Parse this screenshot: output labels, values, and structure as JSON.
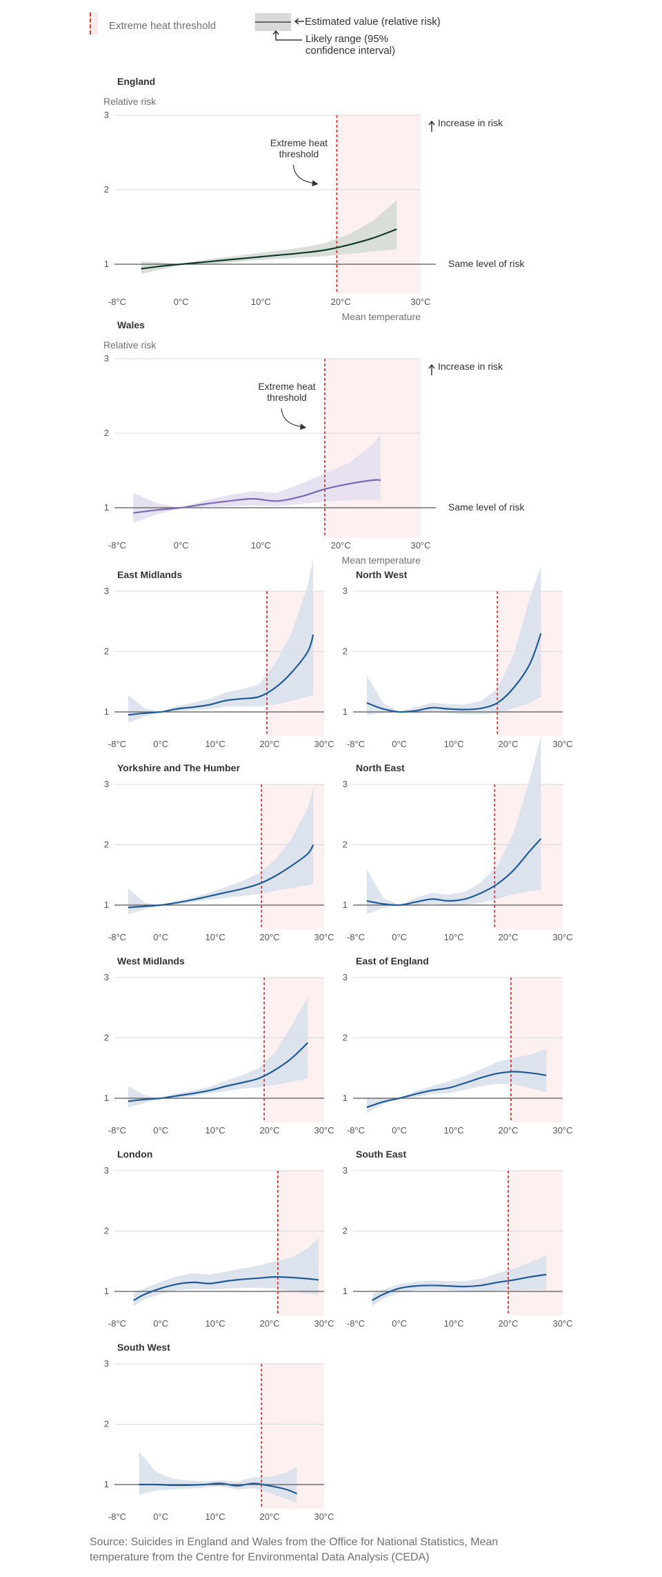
{
  "legend": {
    "threshold_label": "Extreme heat threshold",
    "estimate_label": "Estimated value (relative risk)",
    "range_label_1": "Likely range (95%",
    "range_label_2": "confidence interval)"
  },
  "source_line_1": "Source: Suicides in England and Wales from the Office for National Statistics, Mean",
  "source_line_2": "temperature from the Centre for Environmental Data Analysis (CEDA)",
  "colors": {
    "threshold": "#d93838",
    "heat_zone": "#fdf0f0",
    "england_line": "#0f3b2a",
    "england_band": "#d6dbd6",
    "wales_line": "#7b68b5",
    "wales_band": "#e4dff0",
    "region_line": "#1f5a96",
    "region_band": "#d9e1ec",
    "gridline": "#d9d9d9",
    "baseline": "#555555"
  },
  "chart_data": [
    {
      "type": "line",
      "title": "England",
      "ylabel": "Relative risk",
      "xlabel": "Mean temperature",
      "xlim": [
        -8,
        30
      ],
      "ylim": [
        0.6,
        3
      ],
      "x_ticks": [
        "-8°C",
        "0°C",
        "10°C",
        "20°C",
        "30°C"
      ],
      "y_ticks": [
        1,
        2,
        3
      ],
      "threshold": 19.5,
      "annotations": {
        "threshold_note": [
          "Extreme heat",
          "threshold"
        ],
        "increase": "Increase in risk",
        "same": "Same level of risk"
      },
      "series": [
        {
          "x": [
            -5,
            -2,
            0,
            3,
            6,
            9,
            12,
            15,
            18,
            21,
            24,
            27
          ],
          "y": [
            0.94,
            0.98,
            1.0,
            1.03,
            1.06,
            1.09,
            1.12,
            1.15,
            1.19,
            1.26,
            1.35,
            1.47
          ],
          "lower": [
            0.87,
            0.94,
            1.0,
            1.0,
            1.02,
            1.05,
            1.07,
            1.09,
            1.11,
            1.14,
            1.17,
            1.2
          ],
          "upper": [
            1.04,
            1.02,
            1.0,
            1.06,
            1.1,
            1.14,
            1.18,
            1.22,
            1.28,
            1.4,
            1.58,
            1.86
          ]
        }
      ]
    },
    {
      "type": "line",
      "title": "Wales",
      "ylabel": "Relative risk",
      "xlabel": "Mean temperature",
      "xlim": [
        -8,
        30
      ],
      "ylim": [
        0.6,
        3
      ],
      "x_ticks": [
        "-8°C",
        "0°C",
        "10°C",
        "20°C",
        "30°C"
      ],
      "y_ticks": [
        1,
        2,
        3
      ],
      "threshold": 18,
      "annotations": {
        "threshold_note": [
          "Extreme heat",
          "threshold"
        ],
        "increase": "Increase in risk",
        "same": "Same level of risk"
      },
      "series": [
        {
          "x": [
            -6,
            -3,
            0,
            3,
            6,
            9,
            12,
            15,
            18,
            21,
            24,
            25
          ],
          "y": [
            0.93,
            0.97,
            1.0,
            1.05,
            1.09,
            1.12,
            1.09,
            1.15,
            1.25,
            1.32,
            1.37,
            1.37
          ],
          "lower": [
            0.8,
            0.91,
            1.0,
            1.01,
            1.02,
            1.03,
            1.02,
            1.05,
            1.08,
            1.1,
            1.1,
            1.1
          ],
          "upper": [
            1.2,
            1.06,
            1.0,
            1.1,
            1.17,
            1.22,
            1.2,
            1.32,
            1.46,
            1.6,
            1.85,
            1.98
          ]
        }
      ]
    },
    {
      "type": "line",
      "title": "East Midlands",
      "xlim": [
        -8,
        30
      ],
      "ylim": [
        0.6,
        3
      ],
      "x_ticks": [
        "-8°C",
        "0°C",
        "10°C",
        "20°C",
        "30°C"
      ],
      "y_ticks": [
        1,
        2,
        3
      ],
      "threshold": 19.5,
      "series": [
        {
          "x": [
            -6,
            -3,
            0,
            3,
            6,
            9,
            12,
            15,
            18,
            21,
            24,
            27,
            28
          ],
          "y": [
            0.95,
            0.98,
            1.0,
            1.05,
            1.08,
            1.12,
            1.19,
            1.22,
            1.25,
            1.4,
            1.65,
            2.0,
            2.28
          ],
          "lower": [
            0.82,
            0.92,
            1.0,
            1.01,
            1.03,
            1.05,
            1.09,
            1.09,
            1.09,
            1.12,
            1.18,
            1.25,
            1.28
          ],
          "upper": [
            1.28,
            1.06,
            1.0,
            1.1,
            1.15,
            1.22,
            1.32,
            1.38,
            1.45,
            1.8,
            2.3,
            3.1,
            3.55
          ]
        }
      ]
    },
    {
      "type": "line",
      "title": "North West",
      "xlim": [
        -8,
        30
      ],
      "ylim": [
        0.6,
        3
      ],
      "x_ticks": [
        "-8°C",
        "0°C",
        "10°C",
        "20°C",
        "30°C"
      ],
      "y_ticks": [
        1,
        2,
        3
      ],
      "threshold": 18,
      "series": [
        {
          "x": [
            -6,
            -3,
            0,
            3,
            6,
            9,
            12,
            15,
            18,
            21,
            24,
            26
          ],
          "y": [
            1.15,
            1.05,
            1.0,
            1.02,
            1.07,
            1.05,
            1.04,
            1.06,
            1.15,
            1.4,
            1.8,
            2.3
          ],
          "lower": [
            0.95,
            0.98,
            1.0,
            0.97,
            1.0,
            0.98,
            0.96,
            0.96,
            0.98,
            1.06,
            1.15,
            1.25
          ],
          "upper": [
            1.6,
            1.15,
            1.0,
            1.08,
            1.15,
            1.13,
            1.12,
            1.18,
            1.38,
            1.95,
            2.9,
            3.4
          ]
        }
      ]
    },
    {
      "type": "line",
      "title": "Yorkshire and The Humber",
      "xlim": [
        -8,
        30
      ],
      "ylim": [
        0.6,
        3
      ],
      "x_ticks": [
        "-8°C",
        "0°C",
        "10°C",
        "20°C",
        "30°C"
      ],
      "y_ticks": [
        1,
        2,
        3
      ],
      "threshold": 18.5,
      "series": [
        {
          "x": [
            -6,
            -3,
            0,
            3,
            6,
            9,
            12,
            15,
            18,
            21,
            24,
            27,
            28
          ],
          "y": [
            0.96,
            0.98,
            1.0,
            1.04,
            1.09,
            1.15,
            1.21,
            1.27,
            1.35,
            1.48,
            1.65,
            1.85,
            2.0
          ],
          "lower": [
            0.85,
            0.93,
            1.0,
            1.01,
            1.05,
            1.09,
            1.12,
            1.15,
            1.18,
            1.24,
            1.28,
            1.33,
            1.35
          ],
          "upper": [
            1.28,
            1.04,
            1.0,
            1.07,
            1.13,
            1.21,
            1.3,
            1.4,
            1.53,
            1.75,
            2.1,
            2.6,
            2.95
          ]
        }
      ]
    },
    {
      "type": "line",
      "title": "North East",
      "xlim": [
        -8,
        30
      ],
      "ylim": [
        0.6,
        3
      ],
      "x_ticks": [
        "-8°C",
        "0°C",
        "10°C",
        "20°C",
        "30°C"
      ],
      "y_ticks": [
        1,
        2,
        3
      ],
      "threshold": 17.5,
      "series": [
        {
          "x": [
            -6,
            -3,
            0,
            3,
            6,
            9,
            12,
            15,
            18,
            21,
            24,
            26
          ],
          "y": [
            1.07,
            1.02,
            1.0,
            1.05,
            1.1,
            1.07,
            1.1,
            1.2,
            1.35,
            1.58,
            1.9,
            2.1
          ],
          "lower": [
            0.85,
            0.95,
            1.0,
            0.98,
            1.02,
            0.99,
            1.0,
            1.04,
            1.1,
            1.18,
            1.23,
            1.25
          ],
          "upper": [
            1.6,
            1.12,
            1.0,
            1.12,
            1.2,
            1.17,
            1.22,
            1.38,
            1.65,
            2.2,
            3.1,
            3.8
          ]
        }
      ]
    },
    {
      "type": "line",
      "title": "West Midlands",
      "xlim": [
        -8,
        30
      ],
      "ylim": [
        0.6,
        3
      ],
      "x_ticks": [
        "-8°C",
        "0°C",
        "10°C",
        "20°C",
        "30°C"
      ],
      "y_ticks": [
        1,
        2,
        3
      ],
      "threshold": 19,
      "series": [
        {
          "x": [
            -6,
            -3,
            0,
            3,
            6,
            9,
            12,
            15,
            18,
            21,
            24,
            27
          ],
          "y": [
            0.95,
            0.98,
            1.0,
            1.04,
            1.08,
            1.13,
            1.2,
            1.26,
            1.33,
            1.47,
            1.66,
            1.92
          ],
          "lower": [
            0.85,
            0.92,
            1.0,
            1.0,
            1.04,
            1.08,
            1.12,
            1.16,
            1.18,
            1.22,
            1.27,
            1.33
          ],
          "upper": [
            1.2,
            1.05,
            1.0,
            1.08,
            1.13,
            1.19,
            1.29,
            1.38,
            1.5,
            1.76,
            2.2,
            2.68
          ]
        }
      ]
    },
    {
      "type": "line",
      "title": "East of England",
      "xlim": [
        -8,
        30
      ],
      "ylim": [
        0.6,
        3
      ],
      "x_ticks": [
        "-8°C",
        "0°C",
        "10°C",
        "20°C",
        "30°C"
      ],
      "y_ticks": [
        1,
        2,
        3
      ],
      "threshold": 20.5,
      "series": [
        {
          "x": [
            -6,
            -3,
            0,
            3,
            6,
            9,
            12,
            15,
            18,
            21,
            24,
            27
          ],
          "y": [
            0.85,
            0.94,
            1.0,
            1.07,
            1.13,
            1.17,
            1.25,
            1.34,
            1.41,
            1.44,
            1.42,
            1.38
          ],
          "lower": [
            0.76,
            0.9,
            1.0,
            1.02,
            1.07,
            1.08,
            1.14,
            1.2,
            1.24,
            1.23,
            1.17,
            1.1
          ],
          "upper": [
            1.0,
            1.0,
            1.0,
            1.12,
            1.2,
            1.28,
            1.37,
            1.48,
            1.6,
            1.67,
            1.72,
            1.82
          ]
        }
      ]
    },
    {
      "type": "line",
      "title": "London",
      "xlim": [
        -8,
        30
      ],
      "ylim": [
        0.6,
        3
      ],
      "x_ticks": [
        "-8°C",
        "0°C",
        "10°C",
        "20°C",
        "30°C"
      ],
      "y_ticks": [
        1,
        2,
        3
      ],
      "threshold": 21.5,
      "series": [
        {
          "x": [
            -5,
            -3,
            0,
            3,
            6,
            9,
            12,
            15,
            18,
            21,
            24,
            27,
            29
          ],
          "y": [
            0.85,
            0.95,
            1.05,
            1.12,
            1.15,
            1.13,
            1.17,
            1.2,
            1.22,
            1.24,
            1.23,
            1.21,
            1.19
          ],
          "lower": [
            0.75,
            0.87,
            0.96,
            1.02,
            1.04,
            1.03,
            1.05,
            1.06,
            1.06,
            1.05,
            1.01,
            0.96,
            0.94
          ],
          "upper": [
            0.97,
            1.05,
            1.16,
            1.25,
            1.3,
            1.28,
            1.33,
            1.38,
            1.43,
            1.5,
            1.56,
            1.72,
            1.88
          ]
        }
      ]
    },
    {
      "type": "line",
      "title": "South East",
      "xlim": [
        -8,
        30
      ],
      "ylim": [
        0.6,
        3
      ],
      "x_ticks": [
        "-8°C",
        "0°C",
        "10°C",
        "20°C",
        "30°C"
      ],
      "y_ticks": [
        1,
        2,
        3
      ],
      "threshold": 20,
      "series": [
        {
          "x": [
            -5,
            -3,
            0,
            3,
            6,
            9,
            12,
            15,
            18,
            21,
            24,
            27
          ],
          "y": [
            0.85,
            0.95,
            1.05,
            1.09,
            1.1,
            1.09,
            1.08,
            1.1,
            1.15,
            1.19,
            1.24,
            1.28
          ],
          "lower": [
            0.76,
            0.88,
            0.98,
            1.02,
            1.03,
            1.02,
            1.0,
            1.0,
            1.01,
            1.02,
            1.03,
            1.03
          ],
          "upper": [
            0.96,
            1.03,
            1.12,
            1.16,
            1.18,
            1.17,
            1.17,
            1.21,
            1.3,
            1.38,
            1.48,
            1.6
          ]
        }
      ]
    },
    {
      "type": "line",
      "title": "South West",
      "xlim": [
        -8,
        30
      ],
      "ylim": [
        0.6,
        3
      ],
      "x_ticks": [
        "-8°C",
        "0°C",
        "10°C",
        "20°C",
        "30°C"
      ],
      "y_ticks": [
        1,
        2,
        3
      ],
      "threshold": 18.5,
      "series": [
        {
          "x": [
            -4,
            -1,
            2,
            5,
            8,
            11,
            14,
            17,
            20,
            23,
            25
          ],
          "y": [
            1.0,
            1.0,
            0.99,
            0.99,
            1.0,
            1.02,
            0.98,
            1.02,
            0.98,
            0.92,
            0.85
          ],
          "lower": [
            0.83,
            0.9,
            0.92,
            0.93,
            0.95,
            0.97,
            0.92,
            0.94,
            0.86,
            0.76,
            0.7
          ],
          "upper": [
            1.55,
            1.22,
            1.1,
            1.07,
            1.05,
            1.07,
            1.05,
            1.12,
            1.13,
            1.2,
            1.3
          ]
        }
      ]
    }
  ]
}
